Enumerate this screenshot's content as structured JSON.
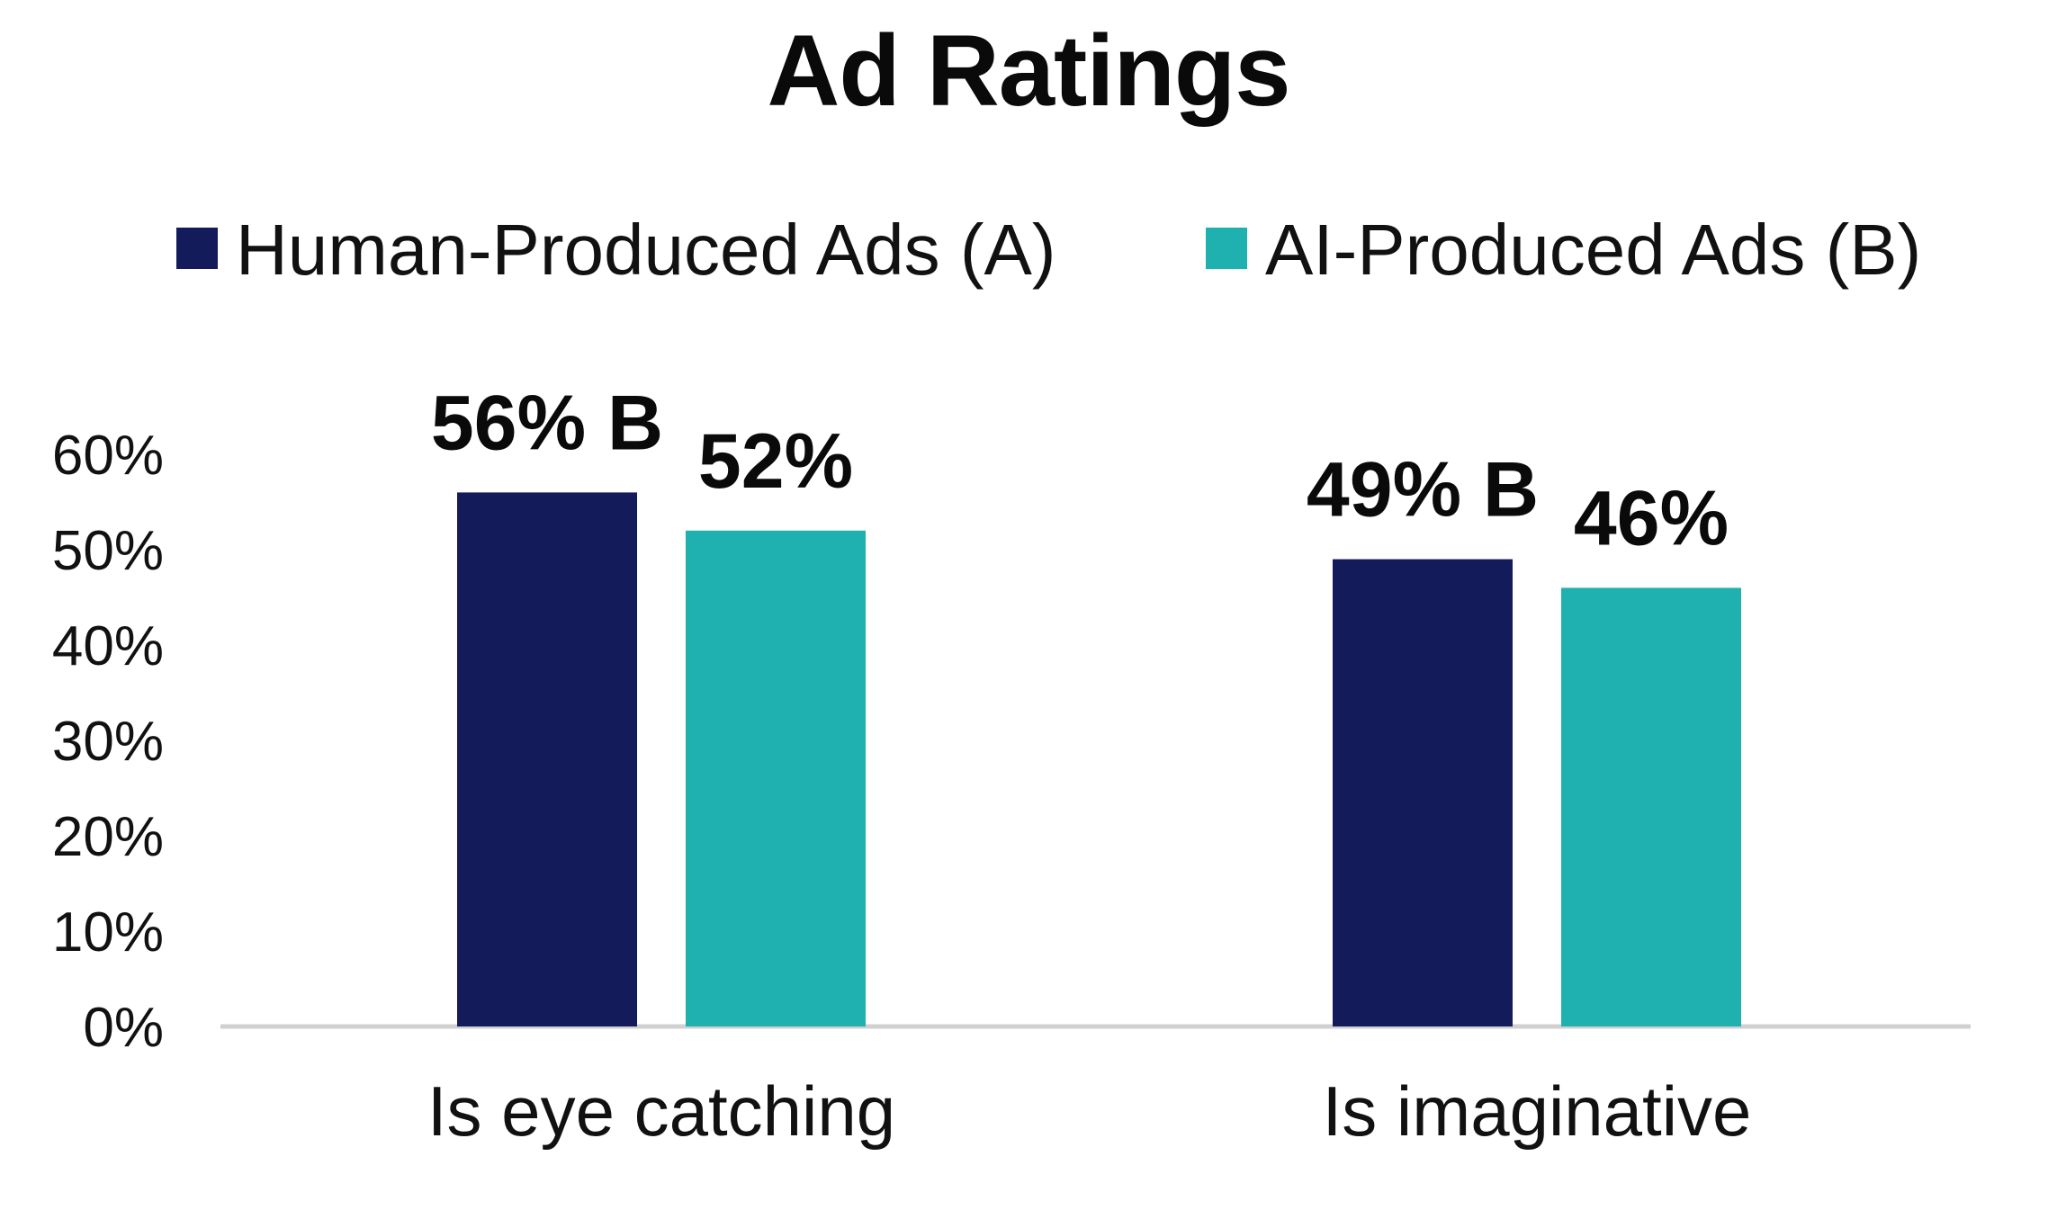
{
  "chart_data": {
    "type": "bar",
    "title": "Ad Ratings",
    "categories": [
      "Is eye catching",
      "Is imaginative"
    ],
    "series": [
      {
        "name": "Human-Produced Ads (A)",
        "color": "#141b5a",
        "values": [
          56,
          49
        ],
        "labels": [
          "56% B",
          "49% B"
        ]
      },
      {
        "name": "AI-Produced Ads (B)",
        "color": "#1fb0b0",
        "values": [
          52,
          46
        ],
        "labels": [
          "52%",
          "46%"
        ]
      }
    ],
    "y_ticks": [
      "0%",
      "10%",
      "20%",
      "30%",
      "40%",
      "50%",
      "60%"
    ],
    "ylim": [
      0,
      60
    ],
    "xlabel": "",
    "ylabel": "",
    "grid": false,
    "legend_position": "top",
    "axis_color": "#d0d0d0"
  }
}
